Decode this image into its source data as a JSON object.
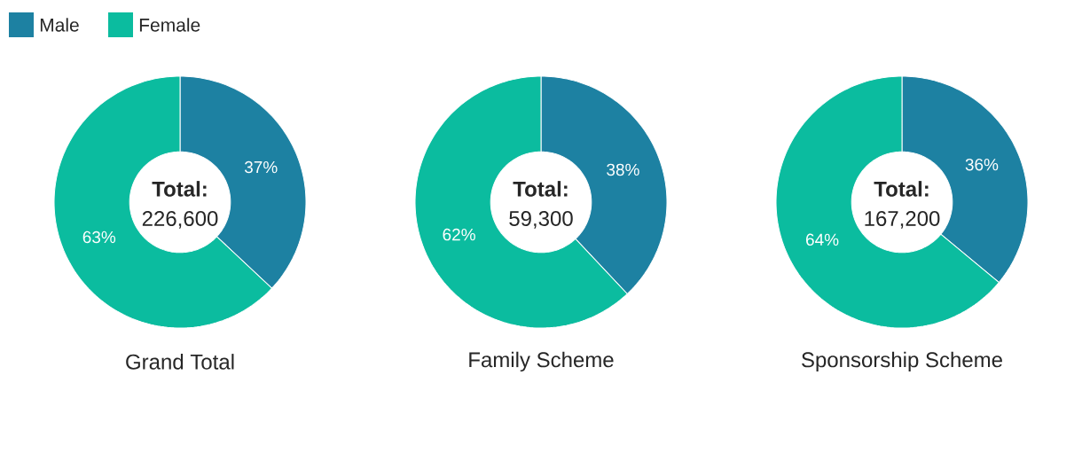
{
  "chart_data": [
    {
      "type": "donut",
      "title": "Grand Total",
      "categories": [
        "Male",
        "Female"
      ],
      "values": [
        37,
        63
      ],
      "colors": [
        "#1d81a2",
        "#0bbc9f"
      ],
      "value_labels": [
        "37%",
        "63%"
      ],
      "annotations": [
        "Total:",
        "226,600"
      ],
      "legend": "top left"
    },
    {
      "type": "donut",
      "title": "Family Scheme",
      "categories": [
        null,
        null
      ],
      "values": [
        38,
        62
      ],
      "colors": [
        "#1d81a2",
        "#0bbc9f"
      ],
      "value_labels": [
        "38%",
        "62%"
      ],
      "annotations": [
        "Total:",
        "59,300"
      ]
    },
    {
      "type": "donut",
      "title": "Sponsorship Scheme",
      "categories": [
        null,
        null
      ],
      "values": [
        36,
        64
      ],
      "colors": [
        "#1d81a2",
        "#0bbc9f"
      ],
      "value_labels": [
        "36%",
        "64%"
      ],
      "annotations": [
        "Total:",
        "167,200"
      ]
    }
  ]
}
